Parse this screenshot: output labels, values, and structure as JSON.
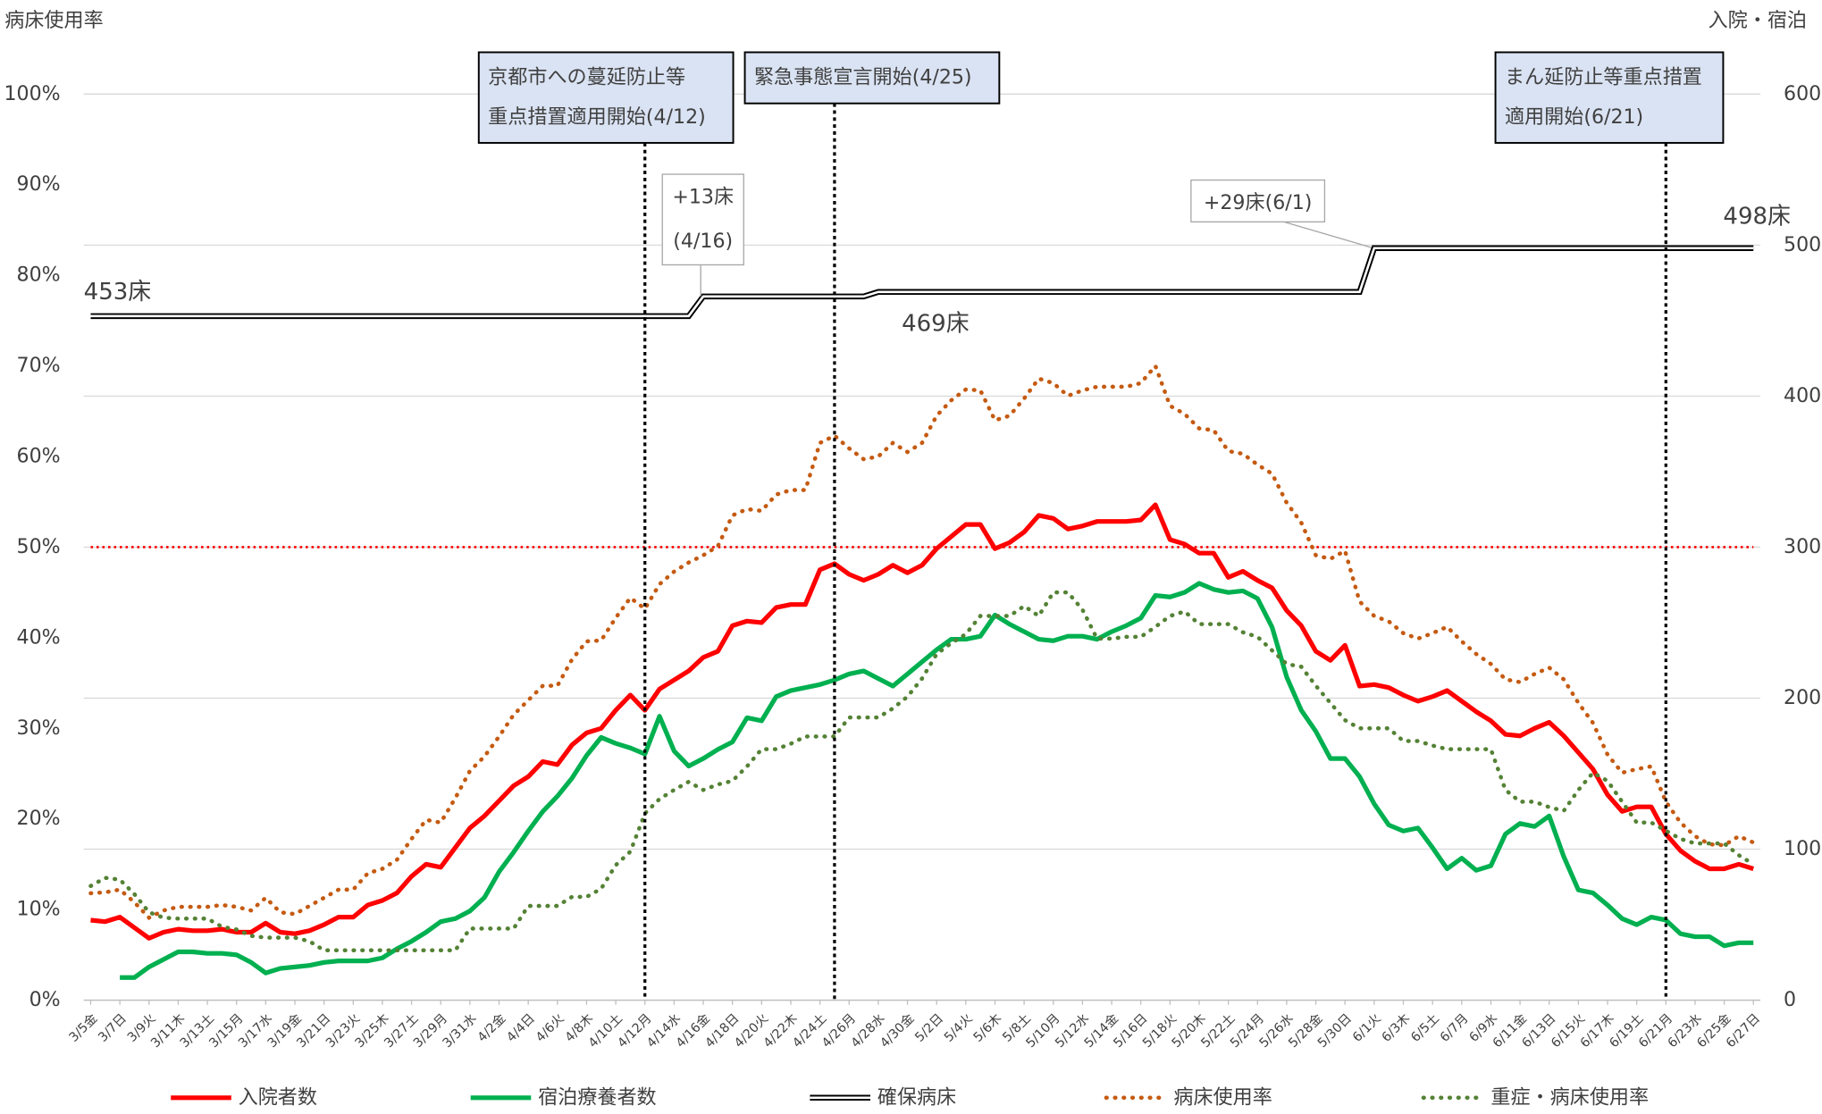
{
  "chart_data": {
    "type": "line",
    "ylabel": "病床使用率",
    "y2label": "入院・宿泊",
    "categories": [
      "3/5金",
      null,
      "3/7日",
      null,
      "3/9火",
      null,
      "3/11木",
      null,
      "3/13土",
      null,
      "3/15月",
      null,
      "3/17水",
      null,
      "3/19金",
      null,
      "3/21日",
      null,
      "3/23火",
      null,
      "3/25木",
      null,
      "3/27土",
      null,
      "3/29月",
      null,
      "3/31水",
      null,
      "4/2金",
      null,
      "4/4日",
      null,
      "4/6火",
      null,
      "4/8木",
      null,
      "4/10土",
      null,
      "4/12月",
      null,
      "4/14水",
      null,
      "4/16金",
      null,
      "4/18日",
      null,
      "4/20火",
      null,
      "4/22木",
      null,
      "4/24土",
      null,
      "4/26月",
      null,
      "4/28水",
      null,
      "4/30金",
      null,
      "5/2日",
      null,
      "5/4火",
      null,
      "5/6木",
      null,
      "5/8土",
      null,
      "5/10月",
      null,
      "5/12水",
      null,
      "5/14金",
      null,
      "5/16日",
      null,
      "5/18火",
      null,
      "5/20木",
      null,
      "5/22土",
      null,
      "5/24月",
      null,
      "5/26水",
      null,
      "5/28金",
      null,
      "5/30日",
      null,
      "6/1火",
      null,
      "6/3木",
      null,
      "6/5土",
      null,
      "6/7月",
      null,
      "6/9水",
      null,
      "6/11金",
      null,
      "6/13日",
      null,
      "6/15火",
      null,
      "6/17木",
      null,
      "6/19土",
      null,
      "6/21月",
      null,
      "6/23水",
      null,
      "6/25金",
      null,
      "6/27日"
    ],
    "series": [
      {
        "name": "入院者数",
        "color": "#ff0000",
        "style": "solid",
        "axis": "y2",
        "values": [
          53,
          52,
          55,
          48,
          41,
          45,
          47,
          46,
          46,
          47,
          45,
          45,
          51,
          45,
          44,
          46,
          50,
          55,
          55,
          63,
          66,
          71,
          82,
          90,
          88,
          101,
          114,
          122,
          132,
          142,
          148,
          158,
          156,
          169,
          177,
          180,
          192,
          202,
          192,
          206,
          212,
          218,
          227,
          231,
          248,
          251,
          250,
          260,
          262,
          262,
          285,
          289,
          282,
          278,
          282,
          288,
          283,
          288,
          299,
          307,
          315,
          315,
          299,
          303,
          310,
          321,
          319,
          312,
          314,
          317,
          317,
          317,
          318,
          328,
          305,
          302,
          296,
          296,
          280,
          284,
          278,
          273,
          258,
          248,
          231,
          225,
          235,
          208,
          209,
          207,
          202,
          198,
          201,
          205,
          198,
          191,
          185,
          176,
          175,
          180,
          184,
          175,
          164,
          153,
          136,
          125,
          128,
          128,
          110,
          99,
          92,
          87,
          87,
          90,
          87
        ]
      },
      {
        "name": "宿泊療養者数",
        "color": "#00b050",
        "style": "solid",
        "axis": "y2",
        "values": [
          null,
          null,
          15,
          15,
          22,
          27,
          32,
          32,
          31,
          31,
          30,
          25,
          18,
          21,
          22,
          23,
          25,
          26,
          26,
          26,
          28,
          34,
          39,
          45,
          52,
          54,
          59,
          68,
          85,
          98,
          112,
          125,
          135,
          147,
          162,
          174,
          170,
          167,
          163,
          188,
          165,
          155,
          160,
          166,
          171,
          187,
          185,
          201,
          205,
          207,
          209,
          212,
          216,
          218,
          213,
          208,
          216,
          224,
          232,
          239,
          239,
          241,
          255,
          249,
          244,
          239,
          238,
          241,
          241,
          239,
          244,
          248,
          253,
          268,
          267,
          270,
          276,
          272,
          270,
          271,
          266,
          247,
          214,
          192,
          178,
          160,
          160,
          148,
          130,
          116,
          112,
          114,
          101,
          87,
          94,
          86,
          89,
          110,
          117,
          115,
          122,
          95,
          73,
          71,
          63,
          54,
          50,
          55,
          53,
          44,
          42,
          42,
          36,
          38,
          38
        ]
      },
      {
        "name": "確保病床",
        "color": "#000000",
        "style": "double",
        "axis": "y2",
        "values": [
          453,
          453,
          453,
          453,
          453,
          453,
          453,
          453,
          453,
          453,
          453,
          453,
          453,
          453,
          453,
          453,
          453,
          453,
          453,
          453,
          453,
          453,
          453,
          453,
          453,
          453,
          453,
          453,
          453,
          453,
          453,
          453,
          453,
          453,
          453,
          453,
          453,
          453,
          453,
          453,
          453,
          453,
          466,
          466,
          466,
          466,
          466,
          466,
          466,
          466,
          466,
          466,
          466,
          466,
          469,
          469,
          469,
          469,
          469,
          469,
          469,
          469,
          469,
          469,
          469,
          469,
          469,
          469,
          469,
          469,
          469,
          469,
          469,
          469,
          469,
          469,
          469,
          469,
          469,
          469,
          469,
          469,
          469,
          469,
          469,
          469,
          469,
          469,
          498,
          498,
          498,
          498,
          498,
          498,
          498,
          498,
          498,
          498,
          498,
          498,
          498,
          498,
          498,
          498,
          498,
          498,
          498,
          498,
          498,
          498,
          498,
          498,
          498,
          498,
          498
        ]
      },
      {
        "name": "病床使用率",
        "color": "#c55a11",
        "style": "dotted",
        "axis": "y",
        "values": [
          11.8,
          11.9,
          12.2,
          10.8,
          9.1,
          9.9,
          10.3,
          10.3,
          10.3,
          10.5,
          10.3,
          9.9,
          11.3,
          9.7,
          9.5,
          10.4,
          11.3,
          12.2,
          12.2,
          14.0,
          14.5,
          15.5,
          17.8,
          19.9,
          19.6,
          22.3,
          25.3,
          26.9,
          29.1,
          31.5,
          33.1,
          34.7,
          34.7,
          37.6,
          39.6,
          39.7,
          42.2,
          44.4,
          43.2,
          45.9,
          47.3,
          48.3,
          49.1,
          50.1,
          53.5,
          54.2,
          54.0,
          55.8,
          56.3,
          56.3,
          61.5,
          62.3,
          60.9,
          59.7,
          60.0,
          61.5,
          60.5,
          61.5,
          64.5,
          66.2,
          67.4,
          67.3,
          64.0,
          64.5,
          66.4,
          68.6,
          68.1,
          66.7,
          67.3,
          67.7,
          67.7,
          67.7,
          68.1,
          70.0,
          65.6,
          64.7,
          63.1,
          62.9,
          60.6,
          60.3,
          59.1,
          58.1,
          54.9,
          52.7,
          49.1,
          48.7,
          49.6,
          44.0,
          42.4,
          41.8,
          40.5,
          39.9,
          40.5,
          41.2,
          39.6,
          38.2,
          37.1,
          35.4,
          35.1,
          36.0,
          36.7,
          35.4,
          32.8,
          30.6,
          27.1,
          25.1,
          25.5,
          25.8,
          21.9,
          19.6,
          18.1,
          17.2,
          17.1,
          18.1,
          17.4
        ]
      },
      {
        "name": "重症・病床使用率",
        "color": "#548235",
        "style": "dotted",
        "axis": "y",
        "values": [
          12.6,
          13.5,
          13.3,
          11.7,
          9.7,
          9.1,
          9.0,
          9.0,
          9.0,
          8.1,
          7.8,
          7.1,
          6.9,
          6.9,
          6.9,
          6.5,
          5.5,
          5.5,
          5.5,
          5.5,
          5.5,
          5.5,
          5.5,
          5.5,
          5.5,
          5.5,
          7.9,
          7.9,
          7.9,
          7.9,
          10.4,
          10.4,
          10.4,
          11.4,
          11.4,
          12.3,
          14.9,
          16.4,
          20.6,
          22.2,
          23.2,
          24.1,
          23.2,
          23.8,
          24.2,
          25.8,
          27.7,
          27.7,
          28.3,
          29.1,
          29.1,
          29.1,
          31.2,
          31.2,
          31.2,
          32.2,
          33.5,
          35.5,
          38.2,
          39.4,
          40.4,
          42.4,
          42.4,
          42.4,
          43.5,
          42.4,
          45.0,
          45.0,
          43.1,
          39.9,
          39.9,
          40.1,
          40.1,
          41.2,
          42.4,
          42.9,
          41.5,
          41.5,
          41.5,
          40.6,
          40.1,
          38.6,
          37.1,
          36.8,
          34.7,
          32.8,
          30.9,
          30.0,
          30.0,
          30.0,
          28.6,
          28.6,
          28.1,
          27.7,
          27.7,
          27.7,
          27.7,
          23.2,
          21.9,
          21.9,
          21.3,
          20.9,
          23.2,
          25.1,
          24.2,
          21.9,
          19.6,
          19.6,
          18.7,
          17.8,
          17.3,
          17.3,
          17.3,
          16.0,
          15.0
        ]
      }
    ],
    "ylim": [
      0,
      100
    ],
    "yticks": [
      {
        "value": 0,
        "label": "0%"
      },
      {
        "value": 10,
        "label": "10%"
      },
      {
        "value": 20,
        "label": "20%"
      },
      {
        "value": 30,
        "label": "30%"
      },
      {
        "value": 40,
        "label": "40%"
      },
      {
        "value": 50,
        "label": "50%"
      },
      {
        "value": 60,
        "label": "60%"
      },
      {
        "value": 70,
        "label": "70%"
      },
      {
        "value": 80,
        "label": "80%"
      },
      {
        "value": 90,
        "label": "90%"
      },
      {
        "value": 100,
        "label": "100%"
      }
    ],
    "y2lim": [
      0,
      600
    ],
    "y2ticks": [
      0,
      100,
      200,
      300,
      400,
      500,
      600
    ],
    "grid": true,
    "reference_line": {
      "value": 50,
      "color": "#ff0000"
    },
    "annotations": [
      {
        "lines": [
          "京都市への蔓延防止等",
          "重点措置適用開始(4/12)"
        ],
        "index": 38
      },
      {
        "lines": [
          "緊急事態宣言開始(4/25)"
        ],
        "index": 51
      },
      {
        "lines": [
          "まん延防止等重点措置",
          "適用開始(6/21)"
        ],
        "index": 108
      }
    ],
    "callouts": [
      {
        "lines": [
          "+13床",
          "(4/16)"
        ]
      },
      {
        "lines": [
          "+29床(6/1)"
        ]
      }
    ],
    "bed_labels": [
      "453床",
      "469床",
      "498床"
    ],
    "legend": "bottom"
  }
}
